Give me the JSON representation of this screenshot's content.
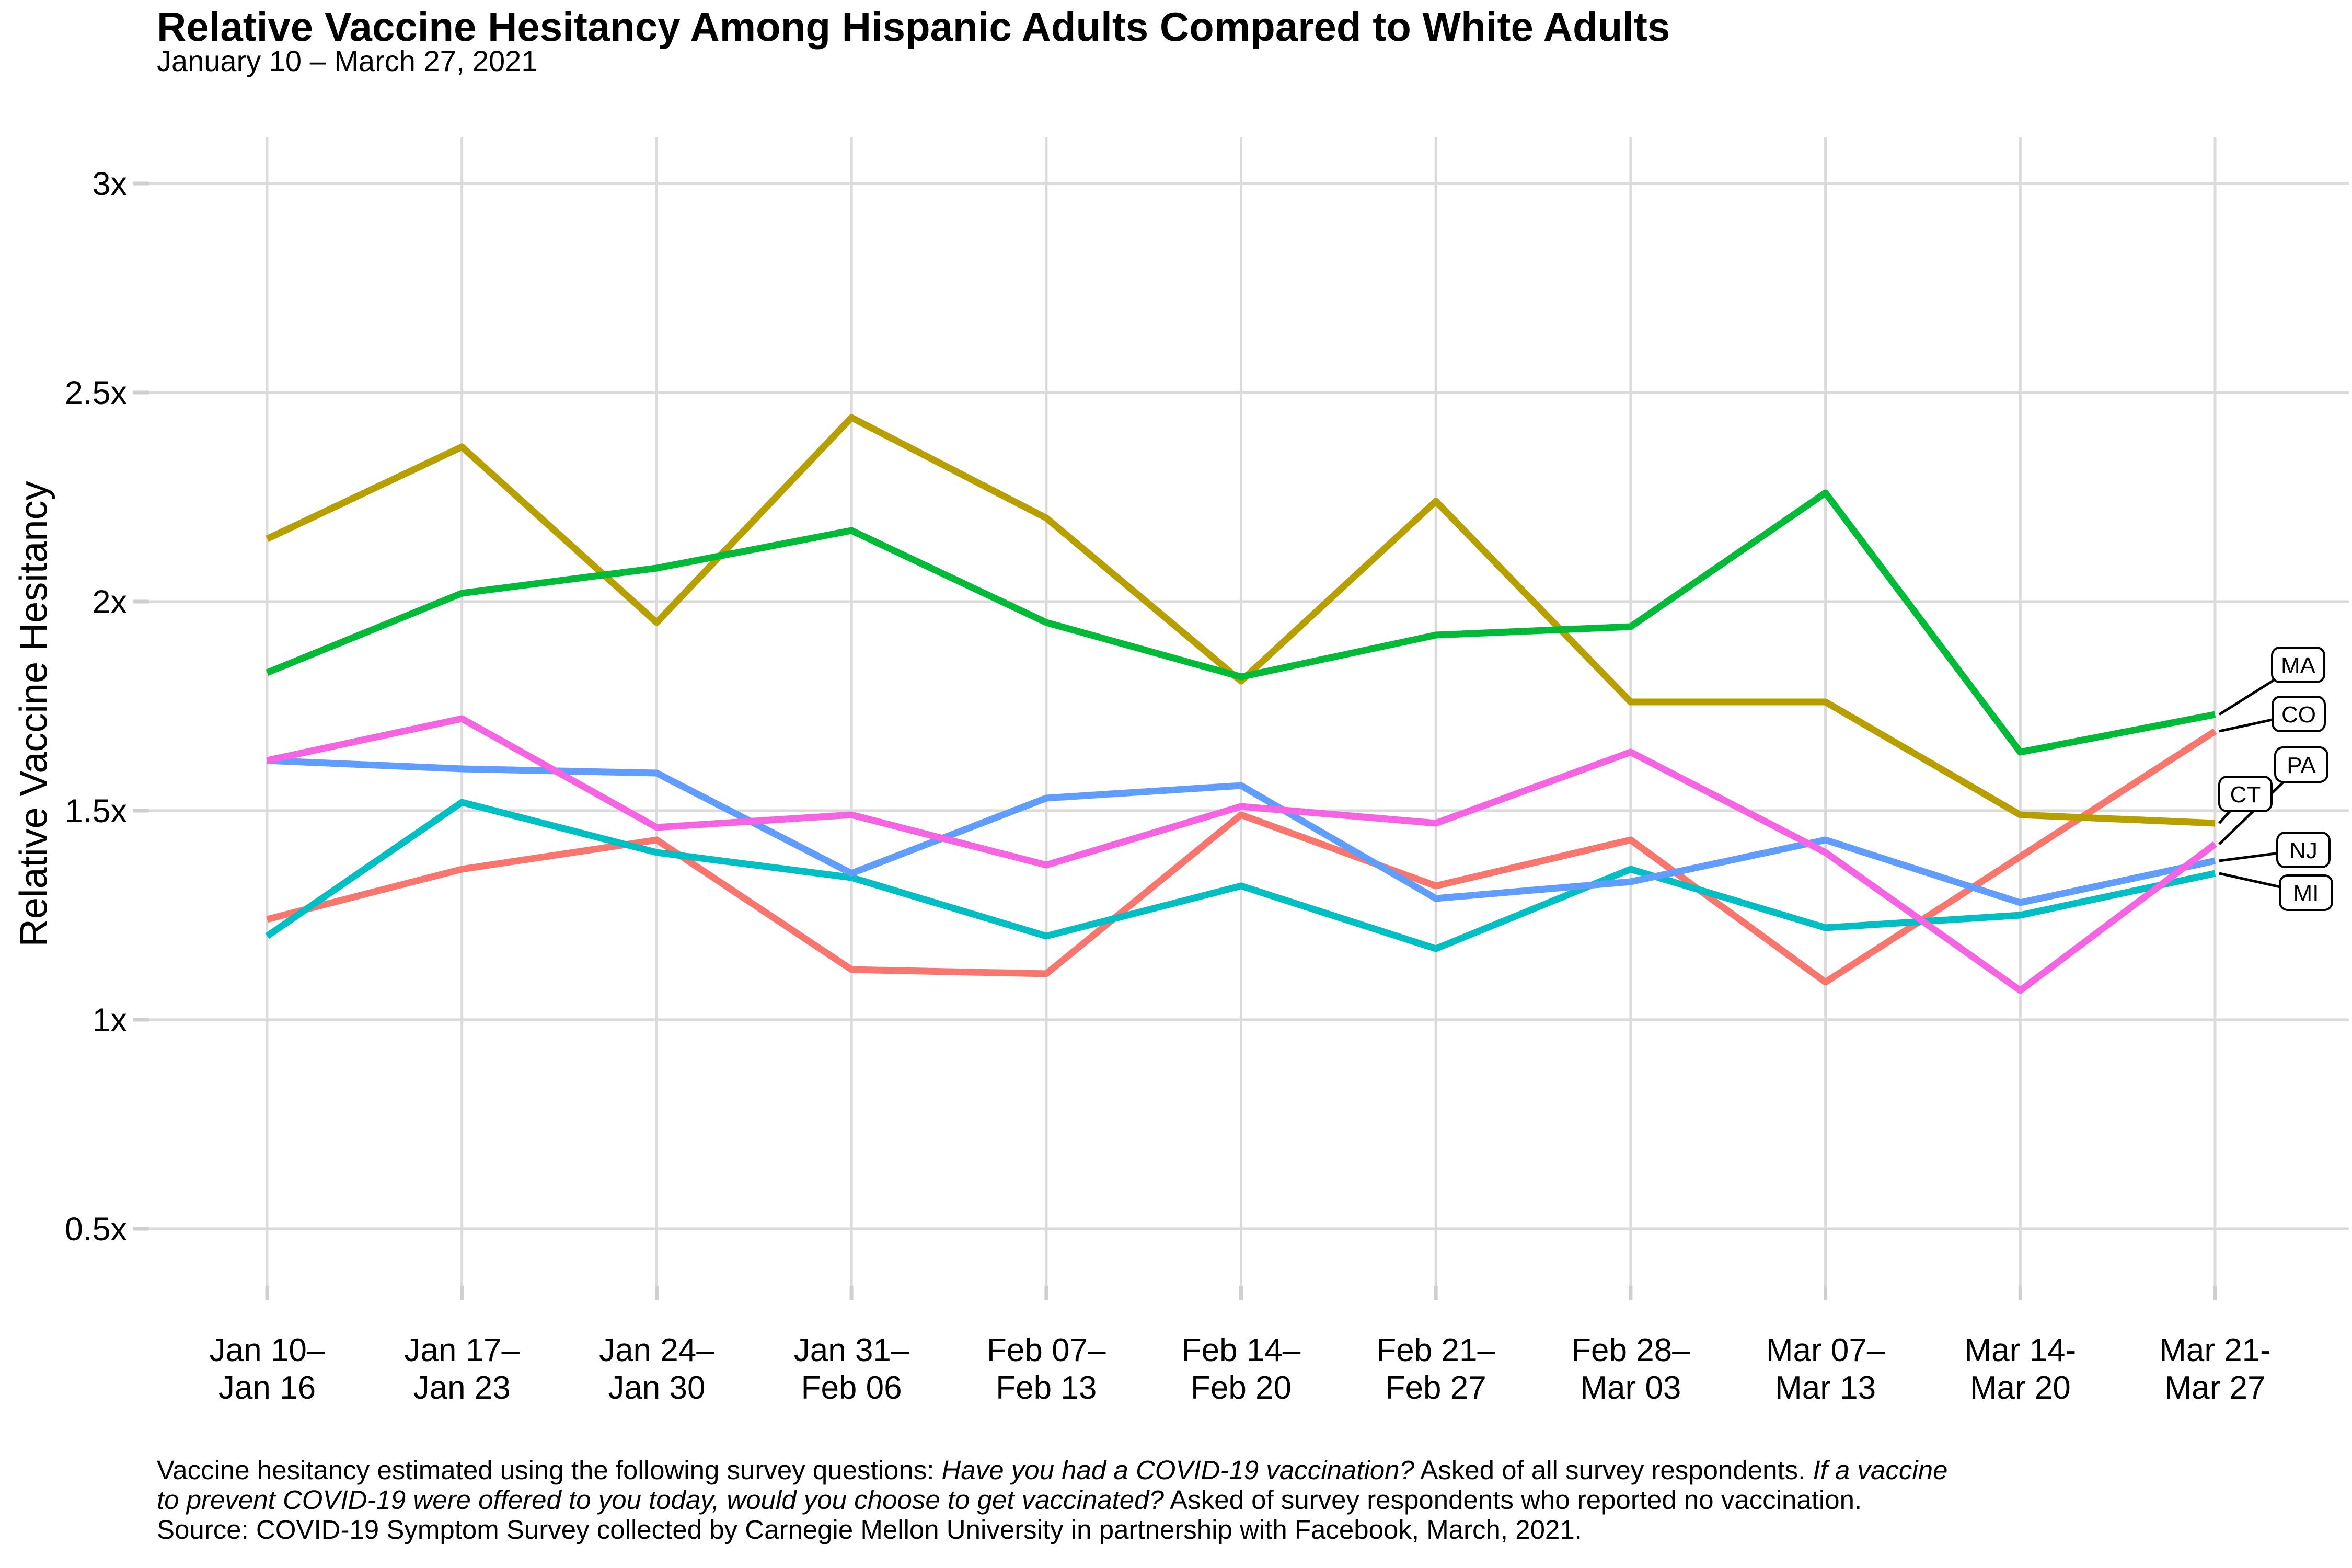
{
  "header": {
    "title": "Relative Vaccine Hesitancy Among Hispanic Adults Compared to White Adults",
    "subtitle": "January 10 – March 27, 2021"
  },
  "chart_data": {
    "type": "line",
    "title": "Relative Vaccine Hesitancy Among Hispanic Adults Compared to White Adults",
    "subtitle": "January 10 – March 27, 2021",
    "xlabel": "",
    "ylabel": "Relative Vaccine Hesitancy",
    "ylim": [
      0.5,
      3
    ],
    "grid": true,
    "legend_position": "right-labels",
    "y_ticks": [
      {
        "label": "3x",
        "value": 3
      },
      {
        "label": "2.5x",
        "value": 2.5
      },
      {
        "label": "2x",
        "value": 2
      },
      {
        "label": "1.5x",
        "value": 1.5
      },
      {
        "label": "1x",
        "value": 1
      },
      {
        "label": "0.5x",
        "value": 0.5
      }
    ],
    "categories": [
      {
        "line1": "Jan 10–",
        "line2": "Jan 16"
      },
      {
        "line1": "Jan 17–",
        "line2": "Jan 23"
      },
      {
        "line1": "Jan 24–",
        "line2": "Jan 30"
      },
      {
        "line1": "Jan 31–",
        "line2": "Feb 06"
      },
      {
        "line1": "Feb 07–",
        "line2": "Feb 13"
      },
      {
        "line1": "Feb 14–",
        "line2": "Feb 20"
      },
      {
        "line1": "Feb 21–",
        "line2": "Feb 27"
      },
      {
        "line1": "Feb 28–",
        "line2": "Mar 03"
      },
      {
        "line1": "Mar 07–",
        "line2": "Mar 13"
      },
      {
        "line1": "Mar 14-",
        "line2": "Mar 20"
      },
      {
        "line1": "Mar 21-",
        "line2": "Mar 27"
      }
    ],
    "series": [
      {
        "name": "CO",
        "color": "#F8766D",
        "values": [
          1.24,
          1.36,
          1.43,
          1.12,
          1.11,
          1.49,
          1.32,
          1.43,
          1.09,
          1.39,
          1.69
        ],
        "label_offset": [
          160,
          -33
        ]
      },
      {
        "name": "CT",
        "color": "#B79F00",
        "values": [
          2.15,
          2.37,
          1.95,
          2.44,
          2.2,
          1.81,
          2.24,
          1.76,
          1.76,
          1.49,
          1.47
        ],
        "label_offset": [
          58,
          -56
        ]
      },
      {
        "name": "MA",
        "color": "#00BA38",
        "values": [
          1.83,
          2.02,
          2.08,
          2.17,
          1.95,
          1.82,
          1.92,
          1.94,
          2.26,
          1.64,
          1.73
        ],
        "label_offset": [
          159,
          -95
        ]
      },
      {
        "name": "MI",
        "color": "#00BFC4",
        "values": [
          1.2,
          1.52,
          1.4,
          1.34,
          1.2,
          1.32,
          1.17,
          1.36,
          1.22,
          1.25,
          1.35
        ],
        "label_offset": [
          174,
          37
        ]
      },
      {
        "name": "NJ",
        "color": "#619CFF",
        "values": [
          1.62,
          1.6,
          1.59,
          1.35,
          1.53,
          1.56,
          1.29,
          1.33,
          1.43,
          1.28,
          1.38
        ],
        "label_offset": [
          169,
          -21
        ]
      },
      {
        "name": "PA",
        "color": "#F564E2",
        "values": [
          1.62,
          1.72,
          1.46,
          1.49,
          1.37,
          1.51,
          1.47,
          1.64,
          1.4,
          1.07,
          1.42
        ],
        "label_offset": [
          165,
          -152
        ]
      }
    ]
  },
  "caption": {
    "lines": [
      [
        {
          "text": "Vaccine hesitancy estimated using the following survey questions: ",
          "italic": false
        },
        {
          "text": "Have you had a COVID-19 vaccination?",
          "italic": true
        },
        {
          "text": " Asked of all survey respondents. ",
          "italic": false
        },
        {
          "text": "If a vaccine",
          "italic": true
        }
      ],
      [
        {
          "text": "to prevent COVID-19 were offered to you today, would you choose to get vaccinated?",
          "italic": true
        },
        {
          "text": " Asked of survey respondents who reported no vaccination.",
          "italic": false
        }
      ],
      [
        {
          "text": "Source: COVID-19 Symptom Survey collected by Carnegie Mellon University in partnership with Facebook, March, 2021.",
          "italic": false
        }
      ]
    ]
  },
  "colors": {
    "grid": "#DBDBDB",
    "tick_stub": "#CFCFCF",
    "text": "#000000",
    "label_box_fill": "#FFFFFF",
    "label_box_border": "#000000"
  }
}
